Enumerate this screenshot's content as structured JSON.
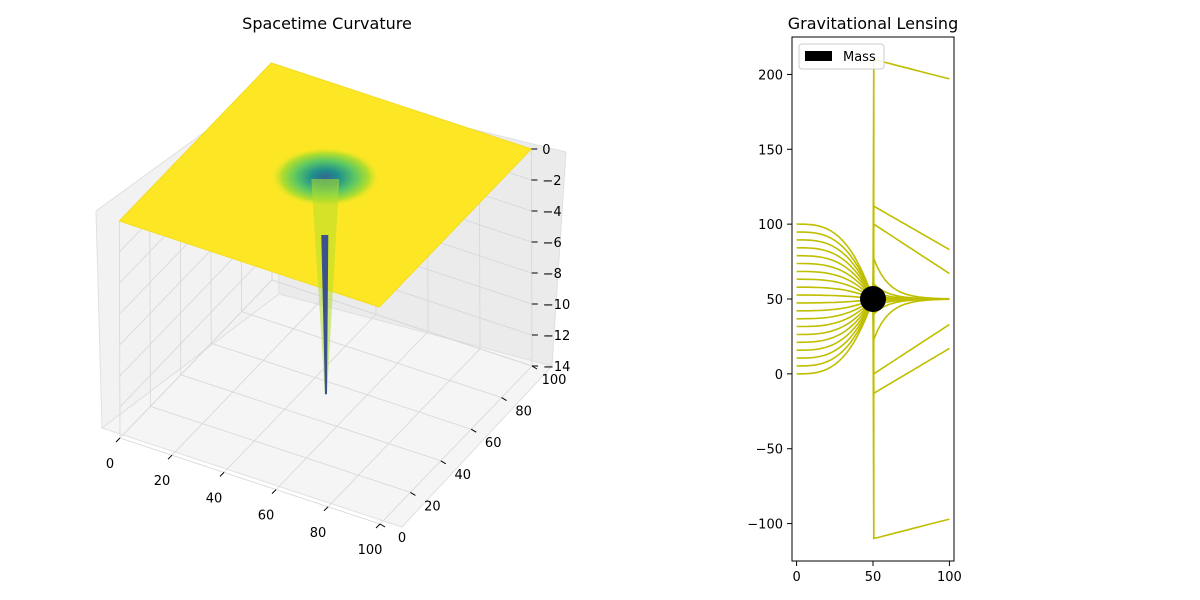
{
  "chart_data": [
    {
      "type": "surface3d",
      "title": "Spacetime Curvature",
      "xlabel": "",
      "ylabel": "",
      "zlabel": "",
      "x_ticks": [
        0,
        20,
        40,
        60,
        80,
        100
      ],
      "y_ticks": [
        0,
        20,
        40,
        60,
        80,
        100
      ],
      "z_ticks": [
        0,
        -2,
        -4,
        -6,
        -8,
        -10,
        -12,
        -14
      ],
      "xlim": [
        0,
        100
      ],
      "ylim": [
        0,
        100
      ],
      "zlim": [
        -14,
        0
      ],
      "surface": {
        "description_of_form": "flat plane z=0 with a deep well centred at x=50, y=50",
        "center": [
          50,
          50
        ],
        "min_z": -13.5,
        "colormap": "viridis"
      },
      "grid": true
    },
    {
      "type": "line",
      "title": "Gravitational Lensing",
      "xlabel": "",
      "ylabel": "",
      "x_ticks": [
        0,
        50,
        100
      ],
      "y_ticks": [
        -100,
        -50,
        0,
        50,
        100,
        150,
        200
      ],
      "xlim": [
        -3,
        103
      ],
      "ylim": [
        -125,
        225
      ],
      "mass": {
        "label": "Mass",
        "x": 50,
        "y": 50,
        "radius": 8,
        "color": "#000000"
      },
      "legend": {
        "position": "top-left",
        "entries": [
          "Mass"
        ]
      },
      "ray_color": "#bfbf00",
      "ray_start_y": [
        0,
        5.3,
        10.5,
        15.8,
        21.1,
        26.3,
        31.6,
        36.8,
        42.1,
        47.4,
        52.6,
        57.9,
        63.2,
        68.4,
        73.7,
        78.9,
        84.2,
        89.5,
        94.7,
        100
      ],
      "ray_end_y": [
        -97,
        17,
        33,
        50,
        50,
        50,
        50,
        50,
        50,
        50,
        50,
        50,
        50,
        50,
        50,
        50,
        50,
        67,
        83,
        197
      ],
      "ray_kick_y": [
        -110,
        -13,
        0,
        23,
        40,
        45,
        48,
        49,
        50,
        50,
        50,
        50,
        51,
        52,
        55,
        60,
        77,
        100,
        112,
        210
      ],
      "grid": false
    }
  ]
}
